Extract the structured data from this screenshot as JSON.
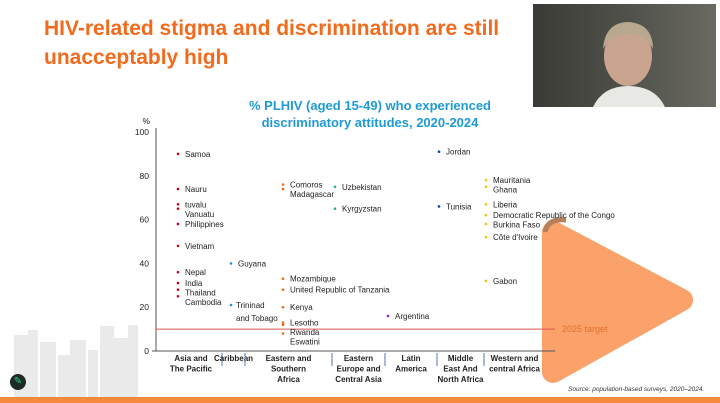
{
  "slide": {
    "title": "HIV-related stigma and discrimination are still unacceptably high",
    "source": "Source: population-based surveys, 2020–2024.",
    "accent_color": "#f26a1b",
    "logo_icon": "pen-leaf-logo"
  },
  "video": {
    "participant": "speaker-video-feed"
  },
  "chart_data": {
    "type": "scatter",
    "title": "% PLHIV (aged 15-49) who experienced discriminatory attitudes, 2020-2024",
    "ylabel": "%",
    "ylim": [
      0,
      100
    ],
    "yticks": [
      "0",
      "20",
      "40",
      "60",
      "80",
      "100"
    ],
    "categories": [
      "Asia and The Pacific",
      "Caribbean",
      "Eastern and Southern Africa",
      "Eastern Europe and Central Asia",
      "Latin America",
      "Middle East And North Africa",
      "Western and central Africa"
    ],
    "target": {
      "value": 10,
      "label": "2025 target",
      "color": "#d9534f"
    },
    "series": [
      {
        "category": "Asia and The Pacific",
        "color": "#c0001a",
        "points": [
          [
            "Samoa",
            90
          ],
          [
            "Nauru",
            74
          ],
          [
            "tuvalu",
            67
          ],
          [
            "Vanuatu",
            65
          ],
          [
            "Philippines",
            58
          ],
          [
            "Vietnam",
            48
          ],
          [
            "Nepal",
            36
          ],
          [
            "India",
            31
          ],
          [
            "Thailand",
            28
          ],
          [
            "Cambodia",
            25
          ]
        ]
      },
      {
        "category": "Caribbean",
        "color": "#1f8fe0",
        "points": [
          [
            "Guyana",
            40
          ],
          [
            "Trininad and Tobago",
            21
          ]
        ]
      },
      {
        "category": "Eastern and Southern Africa",
        "color": "#f26a1b",
        "points": [
          [
            "Comoros",
            76
          ],
          [
            "Madagascar",
            74
          ],
          [
            "Mozambique",
            33
          ],
          [
            "United Republic of Tanzania",
            28
          ],
          [
            "Kenya",
            20
          ],
          [
            "Lesotho",
            13
          ],
          [
            "Rwanda",
            12
          ],
          [
            "Eswatini",
            8
          ]
        ]
      },
      {
        "category": "Eastern Europe and Central Asia",
        "color": "#1db36b",
        "points": [
          [
            "Uzbekistan",
            75
          ],
          [
            "Kyrgyzstan",
            65
          ]
        ]
      },
      {
        "category": "Latin America",
        "color": "#a020d0",
        "points": [
          [
            "Argentina",
            16
          ]
        ]
      },
      {
        "category": "Middle East And North Africa",
        "color": "#1040d0",
        "points": [
          [
            "Jordan",
            91
          ],
          [
            "Tunisia",
            66
          ]
        ]
      },
      {
        "category": "Western and central Africa",
        "color": "#f5c000",
        "points": [
          [
            "Mauritania",
            78
          ],
          [
            "Ghana",
            75
          ],
          [
            "Liberia",
            67
          ],
          [
            "Democratic Republic of the Congo",
            62
          ],
          [
            "Burkina Faso",
            58
          ],
          [
            "Côte d'Ivoire",
            52
          ],
          [
            "Gabon",
            32
          ]
        ]
      }
    ]
  }
}
